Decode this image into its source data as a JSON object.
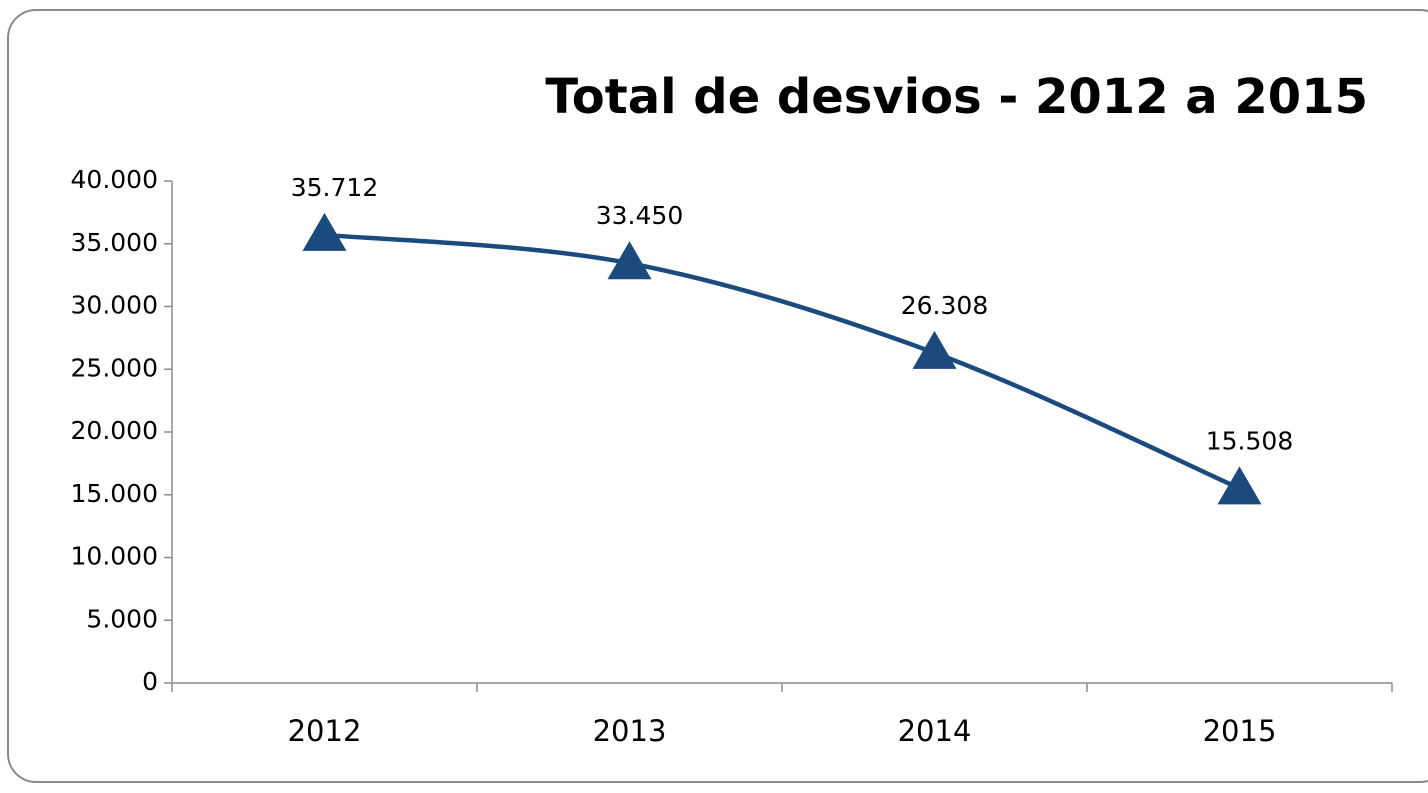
{
  "chart_data": {
    "type": "line",
    "title": "Total de desvios - 2012 a 2015",
    "categories": [
      "2012",
      "2013",
      "2014",
      "2015"
    ],
    "values": [
      35712,
      33450,
      26308,
      15508
    ],
    "value_labels": [
      "35.712",
      "33.450",
      "26.308",
      "15.508"
    ],
    "color": "#1b4a7f",
    "smooth": true,
    "marker": "triangle",
    "ylim": [
      0,
      40000
    ],
    "yticks": [
      0,
      {
        "value": 5000,
        "label": "5.000"
      },
      {
        "value": 10000,
        "label": "10.000"
      },
      {
        "value": 15000,
        "label": "15.000"
      },
      {
        "value": 20000,
        "label": "20.000"
      },
      {
        "value": 25000,
        "label": "25.000"
      },
      {
        "value": 30000,
        "label": "30.000"
      },
      {
        "value": 35000,
        "label": "35.000"
      },
      {
        "value": 40000,
        "label": "40.000"
      }
    ],
    "grid": false
  }
}
